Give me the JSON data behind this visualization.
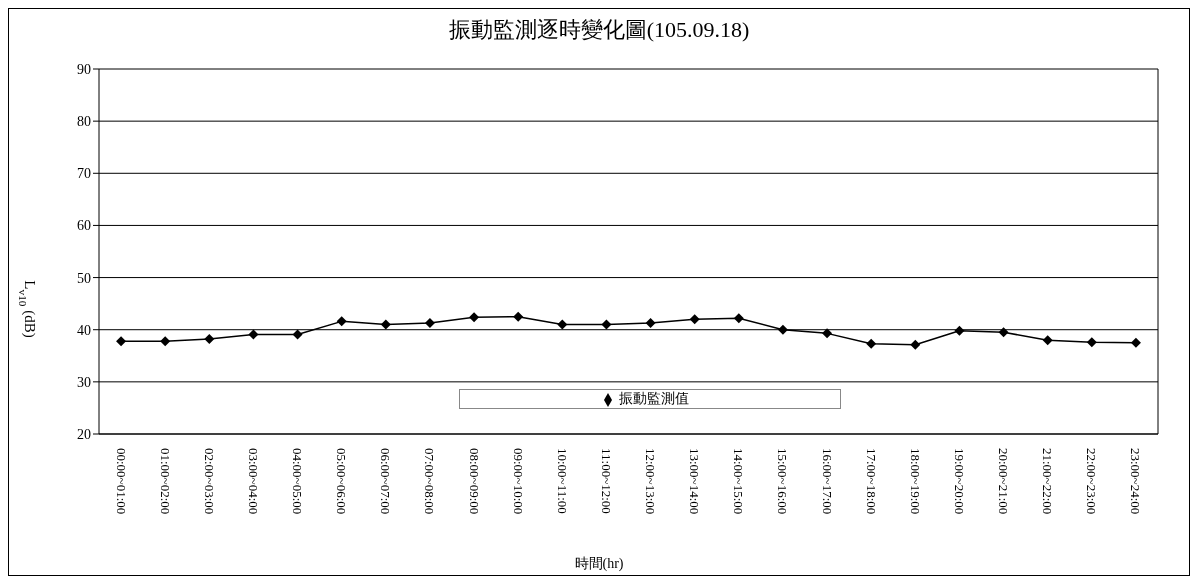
{
  "chart_data": {
    "type": "line",
    "title": "振動監測逐時變化圖(105.09.18)",
    "xlabel": "時間(hr)",
    "ylabel": "L$_{v10}$ (dB)",
    "categories": [
      "00:00~01:00",
      "01:00~02:00",
      "02:00~03:00",
      "03:00~04:00",
      "04:00~05:00",
      "05:00~06:00",
      "06:00~07:00",
      "07:00~08:00",
      "08:00~09:00",
      "09:00~10:00",
      "10:00~11:00",
      "11:00~12:00",
      "12:00~13:00",
      "13:00~14:00",
      "14:00~15:00",
      "15:00~16:00",
      "16:00~17:00",
      "17:00~18:00",
      "18:00~19:00",
      "19:00~20:00",
      "20:00~21:00",
      "21:00~22:00",
      "22:00~23:00",
      "23:00~24:00"
    ],
    "series": [
      {
        "name": "振動監測值",
        "color": "#000000",
        "values": [
          37.8,
          37.8,
          38.2,
          39.1,
          39.1,
          41.6,
          41.0,
          41.3,
          42.4,
          42.5,
          41.0,
          41.0,
          41.3,
          42.0,
          42.2,
          40.0,
          39.3,
          37.3,
          37.1,
          39.8,
          39.5,
          38.0,
          37.6,
          37.5
        ]
      }
    ],
    "ylim": [
      20,
      90
    ],
    "yticks": [
      20,
      30,
      40,
      50,
      60,
      70,
      80,
      90
    ],
    "grid": "y",
    "legend": "bottom",
    "marker": "diamond",
    "line_style": "solid"
  }
}
